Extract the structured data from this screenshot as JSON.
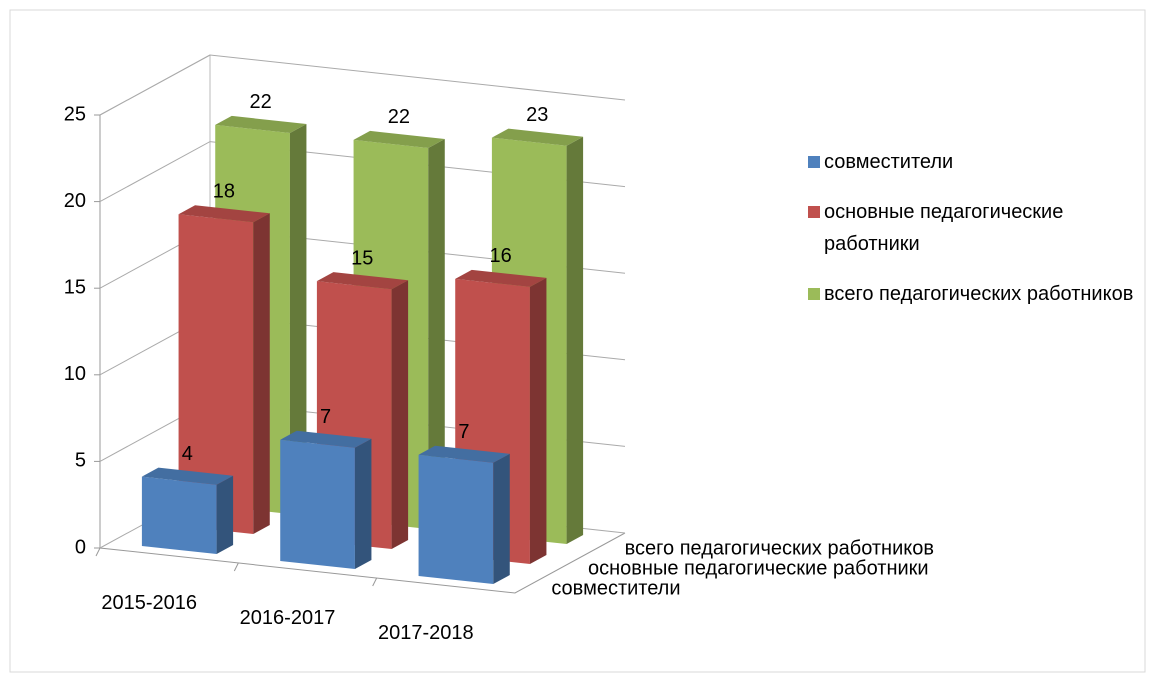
{
  "chart_data": {
    "type": "bar3d",
    "categories": [
      "2015-2016",
      "2016-2017",
      "2017-2018"
    ],
    "series": [
      {
        "name": "совместители",
        "color": "#4f81bd",
        "values": [
          4,
          7,
          7
        ]
      },
      {
        "name": "основные педагогические работники",
        "color": "#c0504d",
        "values": [
          18,
          15,
          16
        ]
      },
      {
        "name": "всего педагогических работников",
        "color": "#9bbb59",
        "values": [
          22,
          22,
          23
        ]
      }
    ],
    "ylim": [
      0,
      25
    ],
    "yticks": [
      0,
      5,
      10,
      15,
      20,
      25
    ],
    "grid": true,
    "legend": "right"
  }
}
